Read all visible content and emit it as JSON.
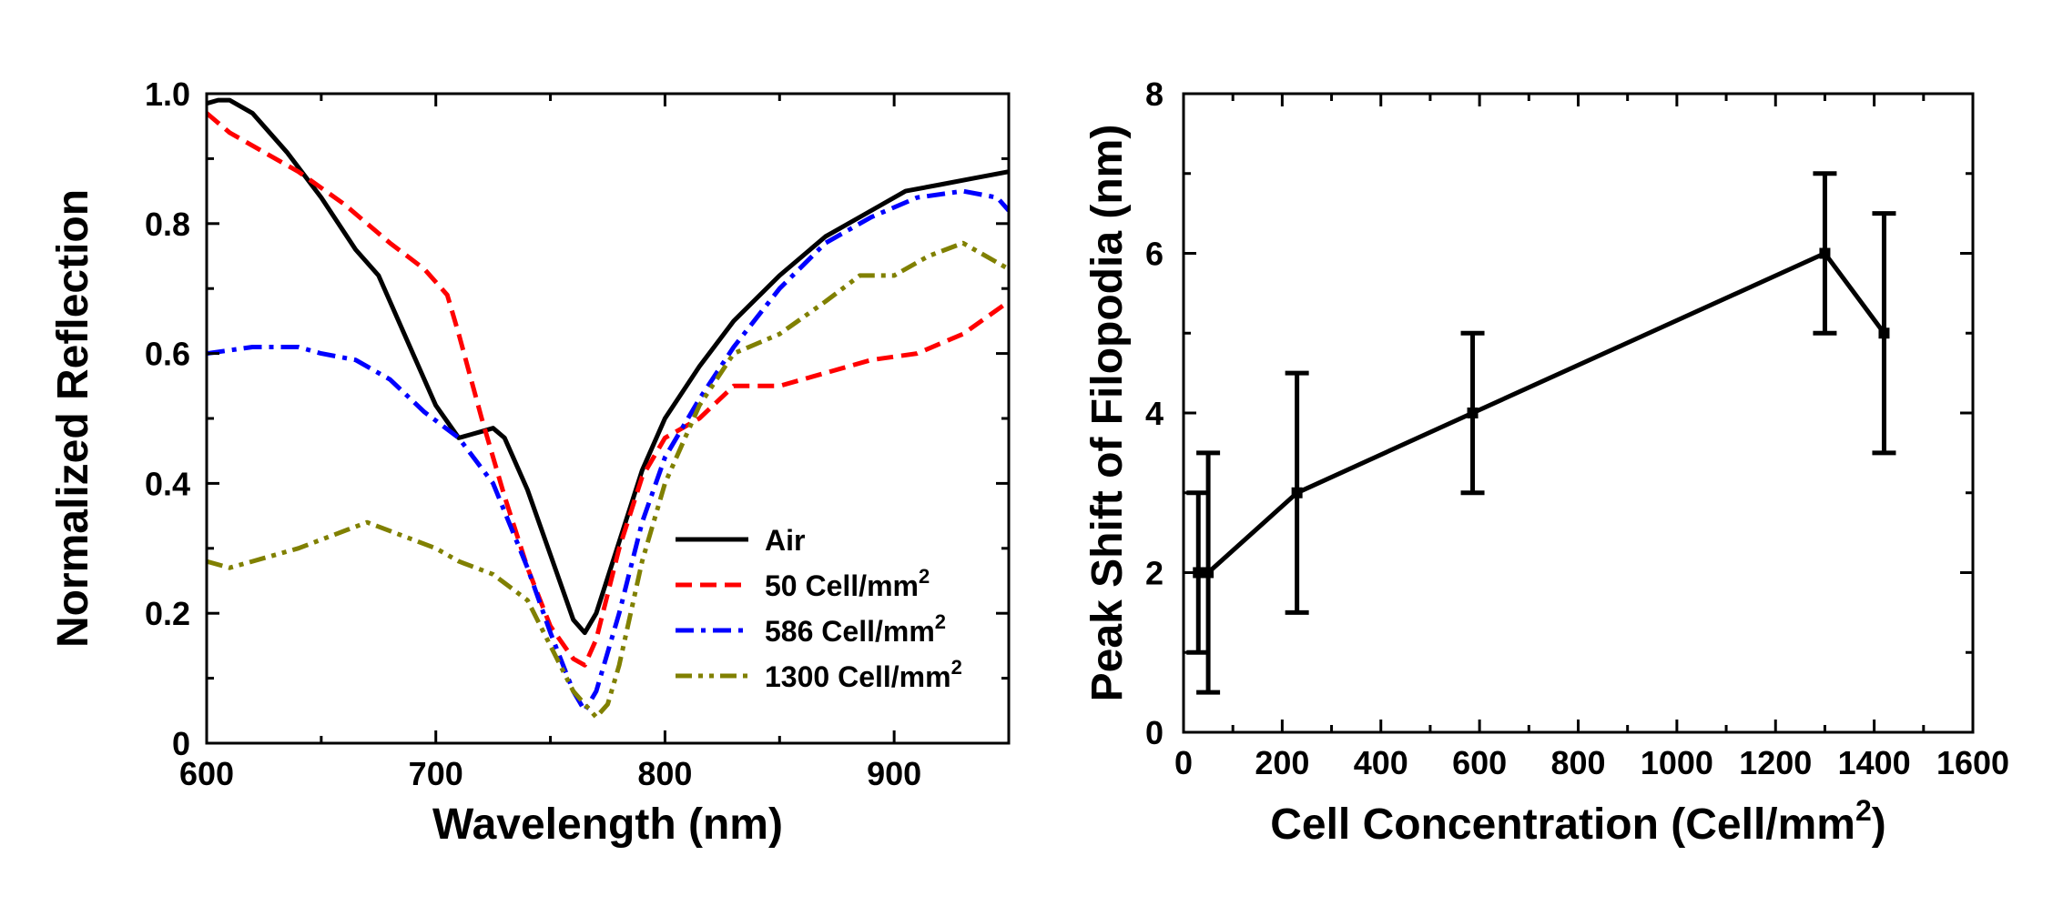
{
  "chart_data": [
    {
      "type": "line",
      "xlabel": "Wavelength (nm)",
      "ylabel": "Normalized Reflection",
      "xlim": [
        600,
        950
      ],
      "ylim": [
        0,
        1.0
      ],
      "xticks": [
        600,
        700,
        800,
        900
      ],
      "yticks": [
        0,
        0.2,
        0.4,
        0.6,
        0.8,
        1.0
      ],
      "ytick_labels": [
        "0",
        "0.2",
        "0.4",
        "0.6",
        "0.8",
        "1.0"
      ],
      "legend_placement": "lower-right",
      "series": [
        {
          "name": "Air",
          "sup": "",
          "color": "#000000",
          "style": "solid",
          "x": [
            600,
            605,
            610,
            620,
            635,
            650,
            665,
            675,
            690,
            700,
            710,
            715,
            720,
            725,
            730,
            740,
            750,
            760,
            765,
            770,
            780,
            790,
            800,
            815,
            830,
            850,
            870,
            890,
            905,
            920,
            935,
            950
          ],
          "y": [
            0.985,
            0.99,
            0.99,
            0.97,
            0.91,
            0.84,
            0.76,
            0.72,
            0.6,
            0.52,
            0.47,
            0.475,
            0.48,
            0.485,
            0.47,
            0.39,
            0.29,
            0.19,
            0.17,
            0.2,
            0.31,
            0.42,
            0.5,
            0.58,
            0.65,
            0.72,
            0.78,
            0.82,
            0.85,
            0.86,
            0.87,
            0.88
          ]
        },
        {
          "name": "50 Cell/mm",
          "sup": "2",
          "color": "#ff0000",
          "style": "dash",
          "x": [
            600,
            610,
            625,
            640,
            660,
            680,
            695,
            705,
            710,
            720,
            730,
            740,
            750,
            760,
            765,
            770,
            780,
            790,
            800,
            815,
            830,
            850,
            870,
            890,
            910,
            930,
            950
          ],
          "y": [
            0.97,
            0.94,
            0.91,
            0.88,
            0.83,
            0.77,
            0.73,
            0.69,
            0.63,
            0.5,
            0.38,
            0.27,
            0.18,
            0.13,
            0.12,
            0.16,
            0.3,
            0.41,
            0.47,
            0.5,
            0.55,
            0.55,
            0.57,
            0.59,
            0.6,
            0.63,
            0.68
          ]
        },
        {
          "name": "586 Cell/mm",
          "sup": "2",
          "color": "#0000ff",
          "style": "dashdot",
          "x": [
            600,
            620,
            640,
            650,
            665,
            680,
            695,
            710,
            725,
            740,
            750,
            760,
            765,
            770,
            780,
            790,
            800,
            815,
            830,
            850,
            870,
            890,
            910,
            930,
            945,
            950
          ],
          "y": [
            0.6,
            0.61,
            0.61,
            0.6,
            0.59,
            0.56,
            0.51,
            0.47,
            0.4,
            0.27,
            0.17,
            0.08,
            0.05,
            0.08,
            0.2,
            0.34,
            0.44,
            0.53,
            0.61,
            0.7,
            0.77,
            0.81,
            0.84,
            0.85,
            0.84,
            0.82
          ]
        },
        {
          "name": "1300 Cell/mm",
          "sup": "2",
          "color": "#808000",
          "style": "dashdotdot",
          "x": [
            600,
            610,
            620,
            640,
            655,
            670,
            685,
            700,
            710,
            725,
            740,
            750,
            760,
            770,
            775,
            780,
            790,
            800,
            815,
            830,
            850,
            870,
            885,
            900,
            915,
            930,
            950
          ],
          "y": [
            0.28,
            0.27,
            0.28,
            0.3,
            0.32,
            0.34,
            0.32,
            0.3,
            0.28,
            0.26,
            0.22,
            0.15,
            0.08,
            0.04,
            0.06,
            0.12,
            0.28,
            0.4,
            0.52,
            0.6,
            0.63,
            0.68,
            0.72,
            0.72,
            0.75,
            0.77,
            0.73
          ]
        }
      ]
    },
    {
      "type": "line",
      "xlabel": "Cell Concentration (Cell/mm",
      "xlabel_sup": "2",
      "xlabel_end": ")",
      "ylabel": "Peak Shift of Filopodia (nm)",
      "xlim": [
        0,
        1600
      ],
      "ylim": [
        0,
        8
      ],
      "xticks": [
        0,
        200,
        400,
        600,
        800,
        1000,
        1200,
        1400,
        1600
      ],
      "yticks": [
        0,
        2,
        4,
        6,
        8
      ],
      "series": [
        {
          "name": "",
          "color": "#000000",
          "x": [
            30,
            50,
            230,
            586,
            1300,
            1420
          ],
          "y": [
            2,
            2,
            3,
            4,
            6,
            5
          ],
          "err": [
            1,
            1.5,
            1.5,
            1,
            1,
            1.5
          ]
        }
      ]
    }
  ]
}
